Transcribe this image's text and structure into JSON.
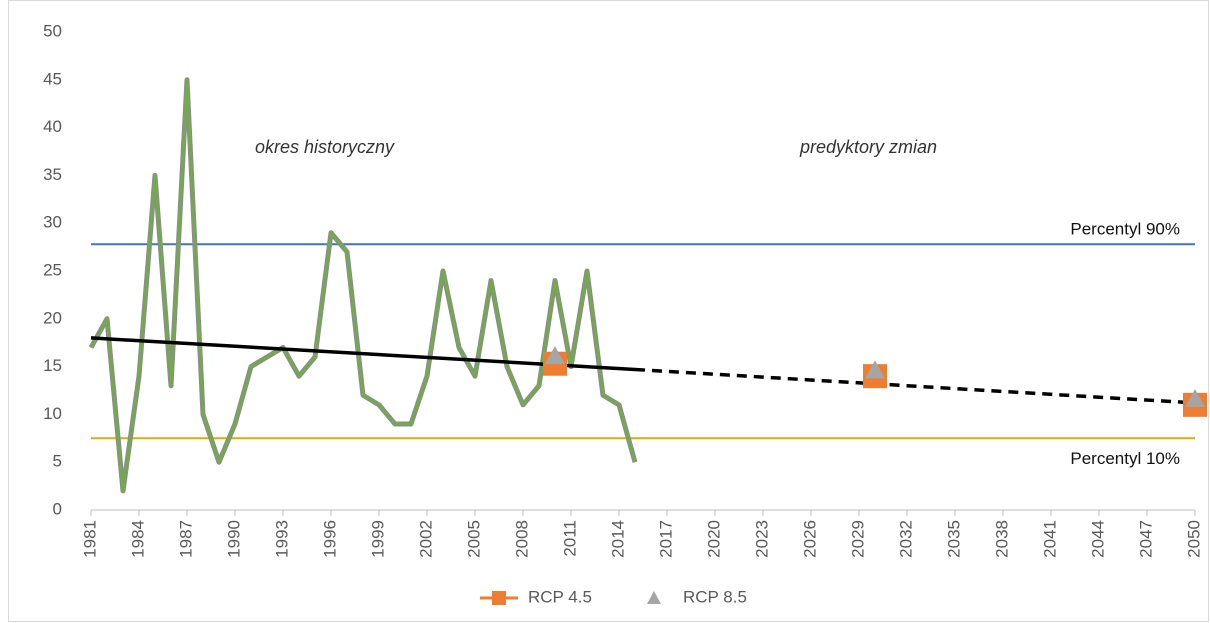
{
  "chart_data": {
    "type": "line",
    "xlim": [
      1981,
      2050
    ],
    "xticks": [
      1981,
      1984,
      1987,
      1990,
      1993,
      1996,
      1999,
      2002,
      2005,
      2008,
      2011,
      2014,
      2017,
      2020,
      2023,
      2026,
      2029,
      2032,
      2035,
      2038,
      2041,
      2044,
      2047,
      2050
    ],
    "ylim": [
      0,
      50
    ],
    "yticks": [
      0,
      5,
      10,
      15,
      20,
      25,
      30,
      35,
      40,
      45,
      50
    ],
    "grid": false,
    "annotations": [
      "okres historyczny",
      "predyktory zmian"
    ],
    "reference_lines": [
      {
        "label": "Percentyl 90%",
        "value": 27.8,
        "color": "#4472c4"
      },
      {
        "label": "Percentyl 10%",
        "value": 7.5,
        "color": "#e0ac00"
      }
    ],
    "series": [
      {
        "color": "#70ad47",
        "style": "solid",
        "outline": "#8c8c8c",
        "x": [
          1981,
          1982,
          1983,
          1984,
          1985,
          1986,
          1987,
          1988,
          1989,
          1990,
          1991,
          1992,
          1993,
          1994,
          1995,
          1996,
          1997,
          1998,
          1999,
          2000,
          2001,
          2002,
          2003,
          2004,
          2005,
          2006,
          2007,
          2008,
          2009,
          2010,
          2011,
          2012,
          2013,
          2014,
          2015
        ],
        "values": [
          17,
          20,
          2,
          14,
          35,
          13,
          45,
          10,
          5,
          9,
          15,
          16,
          17,
          14,
          16,
          29,
          27,
          12,
          11,
          9,
          9,
          14,
          25,
          17,
          14,
          24,
          15,
          11,
          13,
          24,
          15,
          25,
          12,
          11,
          5
        ]
      },
      {
        "color": "#000000",
        "style": "solid",
        "x": [
          1981,
          2015
        ],
        "values": [
          18,
          14.7
        ]
      },
      {
        "color": "#000000",
        "style": "dashed",
        "x": [
          2015,
          2050
        ],
        "values": [
          14.7,
          11.2
        ]
      },
      {
        "name": "RCP 4.5",
        "color": "#ed7d31",
        "marker": "square",
        "x": [
          2010,
          2030,
          2050
        ],
        "values": [
          15.3,
          14,
          11
        ]
      },
      {
        "name": "RCP 8.5",
        "color": "#a5a5a5",
        "marker": "triangle",
        "x": [
          2010,
          2030,
          2050
        ],
        "values": [
          16,
          14.5,
          11.5
        ]
      }
    ]
  }
}
